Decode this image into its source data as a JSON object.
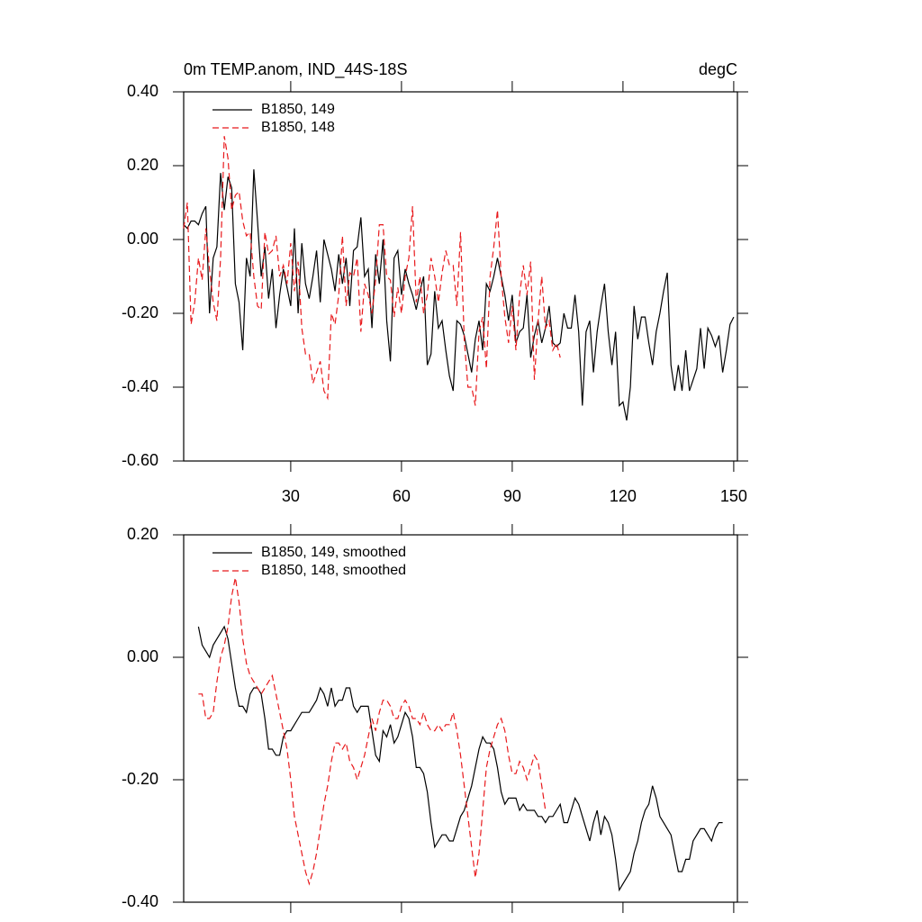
{
  "chart_data": [
    {
      "type": "line",
      "title": "0m TEMP.anom, IND_44S-18S",
      "right_title": "degC",
      "legend": "upper left",
      "x": [
        1,
        2,
        3,
        4,
        5,
        6,
        7,
        8,
        9,
        10,
        11,
        12,
        13,
        14,
        15,
        16,
        17,
        18,
        19,
        20,
        21,
        22,
        23,
        24,
        25,
        26,
        27,
        28,
        29,
        30,
        31,
        32,
        33,
        34,
        35,
        36,
        37,
        38,
        39,
        40,
        41,
        42,
        43,
        44,
        45,
        46,
        47,
        48,
        49,
        50,
        51,
        52,
        53,
        54,
        55,
        56,
        57,
        58,
        59,
        60,
        61,
        62,
        63,
        64,
        65,
        66,
        67,
        68,
        69,
        70,
        71,
        72,
        73,
        74,
        75,
        76,
        77,
        78,
        79,
        80,
        81,
        82,
        83,
        84,
        85,
        86,
        87,
        88,
        89,
        90,
        91,
        92,
        93,
        94,
        95,
        96,
        97,
        98,
        99,
        100,
        101,
        102,
        103,
        104,
        105,
        106,
        107,
        108,
        109,
        110,
        111,
        112,
        113,
        114,
        115,
        116,
        117,
        118,
        119,
        120,
        121,
        122,
        123,
        124,
        125,
        126,
        127,
        128,
        129,
        130,
        131,
        132,
        133,
        134,
        135,
        136,
        137,
        138,
        139,
        140,
        141,
        142,
        143,
        144,
        145,
        146,
        147,
        148,
        149,
        150
      ],
      "xlim": [
        1,
        151
      ],
      "xticks": [
        30,
        60,
        90,
        120,
        150
      ],
      "ylim": [
        -0.6,
        0.4
      ],
      "yticks": [
        {
          "value": 0.4,
          "label": "0.40"
        },
        {
          "value": 0.2,
          "label": "0.20"
        },
        {
          "value": 0,
          "label": "0.00"
        },
        {
          "value": -0.2,
          "label": "-0.20"
        },
        {
          "value": -0.4,
          "label": "-0.40"
        },
        {
          "value": -0.6,
          "label": "-0.60"
        }
      ],
      "series": [
        {
          "name": "B1850, 149",
          "color": "#000000",
          "dash": false,
          "values": [
            0.04,
            0.03,
            0.05,
            0.05,
            0.04,
            0.07,
            0.09,
            -0.2,
            -0.05,
            -0.02,
            0.18,
            0.08,
            0.17,
            0.14,
            -0.12,
            -0.17,
            -0.3,
            -0.05,
            -0.1,
            0.19,
            0.05,
            -0.1,
            -0.02,
            -0.16,
            -0.08,
            -0.24,
            -0.15,
            -0.08,
            -0.13,
            -0.18,
            0.03,
            -0.2,
            -0.01,
            -0.12,
            -0.16,
            -0.1,
            -0.03,
            -0.17,
            0.0,
            -0.04,
            -0.08,
            -0.14,
            -0.04,
            -0.12,
            -0.05,
            -0.18,
            -0.03,
            -0.02,
            0.06,
            -0.1,
            -0.08,
            -0.24,
            -0.04,
            -0.12,
            0.0,
            -0.22,
            -0.33,
            -0.05,
            -0.03,
            -0.15,
            -0.08,
            -0.12,
            -0.15,
            -0.19,
            -0.14,
            -0.1,
            -0.34,
            -0.31,
            -0.14,
            -0.24,
            -0.22,
            -0.3,
            -0.37,
            -0.41,
            -0.22,
            -0.23,
            -0.26,
            -0.31,
            -0.36,
            -0.27,
            -0.22,
            -0.3,
            -0.12,
            -0.14,
            -0.1,
            -0.05,
            -0.1,
            -0.15,
            -0.22,
            -0.15,
            -0.28,
            -0.25,
            -0.24,
            -0.15,
            -0.32,
            -0.26,
            -0.22,
            -0.28,
            -0.24,
            -0.18,
            -0.28,
            -0.29,
            -0.28,
            -0.2,
            -0.24,
            -0.24,
            -0.15,
            -0.25,
            -0.45,
            -0.25,
            -0.22,
            -0.36,
            -0.25,
            -0.18,
            -0.12,
            -0.25,
            -0.34,
            -0.25,
            -0.45,
            -0.44,
            -0.49,
            -0.4,
            -0.18,
            -0.27,
            -0.21,
            -0.21,
            -0.28,
            -0.34,
            -0.25,
            -0.2,
            -0.14,
            -0.09,
            -0.34,
            -0.41,
            -0.34,
            -0.41,
            -0.3,
            -0.41,
            -0.38,
            -0.35,
            -0.24,
            -0.35,
            -0.24,
            -0.26,
            -0.29,
            -0.26,
            -0.36,
            -0.3,
            -0.23,
            -0.21
          ]
        },
        {
          "name": "B1850, 148",
          "color": "#e8191c",
          "dash": true,
          "values": [
            0.03,
            0.1,
            -0.23,
            -0.17,
            -0.05,
            -0.11,
            0.03,
            -0.08,
            -0.17,
            -0.22,
            -0.05,
            0.28,
            0.22,
            0.08,
            0.12,
            0.13,
            0.05,
            0.01,
            0.02,
            -0.1,
            -0.18,
            -0.19,
            0.02,
            -0.04,
            -0.03,
            0.01,
            -0.1,
            -0.07,
            -0.12,
            -0.01,
            -0.14,
            -0.06,
            -0.24,
            -0.31,
            -0.31,
            -0.39,
            -0.36,
            -0.33,
            -0.41,
            -0.43,
            -0.2,
            -0.23,
            -0.15,
            0.01,
            -0.18,
            -0.09,
            -0.1,
            -0.05,
            -0.25,
            -0.12,
            -0.15,
            -0.2,
            -0.11,
            0.04,
            0.04,
            -0.1,
            -0.11,
            -0.21,
            -0.13,
            -0.2,
            -0.1,
            -0.05,
            0.09,
            -0.17,
            -0.1,
            -0.2,
            -0.15,
            -0.05,
            -0.1,
            -0.17,
            -0.09,
            -0.03,
            -0.07,
            -0.07,
            -0.18,
            0.02,
            -0.27,
            -0.4,
            -0.4,
            -0.45,
            -0.25,
            -0.21,
            -0.35,
            -0.1,
            -0.02,
            0.08,
            -0.1,
            -0.21,
            -0.28,
            -0.18,
            -0.3,
            -0.15,
            -0.07,
            -0.15,
            -0.06,
            -0.38,
            -0.22,
            -0.1,
            -0.24,
            -0.22,
            -0.3,
            -0.28,
            -0.32,
            null,
            null,
            null,
            null,
            null,
            null,
            null,
            null,
            null,
            null,
            null,
            null,
            null,
            null,
            null,
            null,
            null,
            null,
            null,
            null,
            null,
            null,
            null,
            null,
            null,
            null,
            null,
            null,
            null,
            null,
            null,
            null,
            null,
            null,
            null,
            null,
            null,
            null,
            null,
            null,
            null,
            null,
            null,
            null,
            null,
            null,
            null
          ]
        }
      ]
    },
    {
      "type": "line",
      "legend": "upper left",
      "x": [
        1,
        2,
        3,
        4,
        5,
        6,
        7,
        8,
        9,
        10,
        11,
        12,
        13,
        14,
        15,
        16,
        17,
        18,
        19,
        20,
        21,
        22,
        23,
        24,
        25,
        26,
        27,
        28,
        29,
        30,
        31,
        32,
        33,
        34,
        35,
        36,
        37,
        38,
        39,
        40,
        41,
        42,
        43,
        44,
        45,
        46,
        47,
        48,
        49,
        50,
        51,
        52,
        53,
        54,
        55,
        56,
        57,
        58,
        59,
        60,
        61,
        62,
        63,
        64,
        65,
        66,
        67,
        68,
        69,
        70,
        71,
        72,
        73,
        74,
        75,
        76,
        77,
        78,
        79,
        80,
        81,
        82,
        83,
        84,
        85,
        86,
        87,
        88,
        89,
        90,
        91,
        92,
        93,
        94,
        95,
        96,
        97,
        98,
        99,
        100,
        101,
        102,
        103,
        104,
        105,
        106,
        107,
        108,
        109,
        110,
        111,
        112,
        113,
        114,
        115,
        116,
        117,
        118,
        119,
        120,
        121,
        122,
        123,
        124,
        125,
        126,
        127,
        128,
        129,
        130,
        131,
        132,
        133,
        134,
        135,
        136,
        137,
        138,
        139,
        140,
        141,
        142,
        143,
        144,
        145,
        146,
        147,
        148,
        149,
        150
      ],
      "xlim": [
        1,
        151
      ],
      "xticks": [
        30,
        60,
        90,
        120,
        150
      ],
      "ylim": [
        -0.4,
        0.2
      ],
      "yticks": [
        {
          "value": 0.2,
          "label": "0.20"
        },
        {
          "value": 0,
          "label": "0.00"
        },
        {
          "value": -0.2,
          "label": "-0.20"
        },
        {
          "value": -0.4,
          "label": "-0.40"
        }
      ],
      "series": [
        {
          "name": "B1850, 149, smoothed",
          "color": "#000000",
          "dash": false,
          "values": [
            null,
            null,
            null,
            null,
            0.05,
            0.02,
            0.01,
            0.0,
            0.02,
            0.03,
            0.04,
            0.05,
            0.03,
            -0.01,
            -0.05,
            -0.08,
            -0.08,
            -0.09,
            -0.06,
            -0.05,
            -0.05,
            -0.06,
            -0.1,
            -0.15,
            -0.15,
            -0.16,
            -0.16,
            -0.13,
            -0.12,
            -0.12,
            -0.11,
            -0.1,
            -0.09,
            -0.09,
            -0.09,
            -0.08,
            -0.07,
            -0.05,
            -0.06,
            -0.08,
            -0.05,
            -0.08,
            -0.07,
            -0.07,
            -0.05,
            -0.05,
            -0.08,
            -0.09,
            -0.08,
            -0.08,
            -0.08,
            -0.12,
            -0.16,
            -0.17,
            -0.12,
            -0.13,
            -0.11,
            -0.14,
            -0.13,
            -0.11,
            -0.09,
            -0.1,
            -0.13,
            -0.18,
            -0.18,
            -0.19,
            -0.22,
            -0.27,
            -0.31,
            -0.3,
            -0.29,
            -0.29,
            -0.3,
            -0.3,
            -0.28,
            -0.26,
            -0.25,
            -0.23,
            -0.21,
            -0.18,
            -0.15,
            -0.13,
            -0.14,
            -0.14,
            -0.15,
            -0.18,
            -0.22,
            -0.24,
            -0.23,
            -0.23,
            -0.23,
            -0.25,
            -0.24,
            -0.25,
            -0.25,
            -0.25,
            -0.26,
            -0.26,
            -0.27,
            -0.26,
            -0.26,
            -0.25,
            -0.24,
            -0.27,
            -0.27,
            -0.25,
            -0.23,
            -0.24,
            -0.26,
            -0.28,
            -0.3,
            -0.27,
            -0.25,
            -0.29,
            -0.26,
            -0.27,
            -0.29,
            -0.33,
            -0.38,
            -0.37,
            -0.36,
            -0.35,
            -0.32,
            -0.3,
            -0.27,
            -0.25,
            -0.24,
            -0.21,
            -0.23,
            -0.26,
            -0.27,
            -0.28,
            -0.29,
            -0.32,
            -0.35,
            -0.35,
            -0.33,
            -0.33,
            -0.3,
            -0.29,
            -0.28,
            -0.28,
            -0.29,
            -0.3,
            -0.28,
            -0.27,
            -0.27,
            null,
            null,
            null
          ]
        },
        {
          "name": "B1850, 148, smoothed",
          "color": "#e8191c",
          "dash": true,
          "values": [
            null,
            null,
            null,
            null,
            -0.06,
            -0.06,
            -0.1,
            -0.1,
            -0.09,
            -0.04,
            0.0,
            0.02,
            0.05,
            0.1,
            0.13,
            0.09,
            0.03,
            -0.01,
            -0.03,
            -0.04,
            -0.05,
            -0.06,
            -0.05,
            -0.04,
            -0.03,
            -0.06,
            -0.09,
            -0.12,
            -0.15,
            -0.2,
            -0.26,
            -0.29,
            -0.32,
            -0.35,
            -0.37,
            -0.35,
            -0.32,
            -0.28,
            -0.24,
            -0.21,
            -0.17,
            -0.14,
            -0.14,
            -0.15,
            -0.14,
            -0.17,
            -0.18,
            -0.2,
            -0.18,
            -0.16,
            -0.13,
            -0.1,
            -0.12,
            -0.09,
            -0.07,
            -0.07,
            -0.08,
            -0.1,
            -0.1,
            -0.08,
            -0.07,
            -0.08,
            -0.1,
            -0.1,
            -0.11,
            -0.09,
            -0.11,
            -0.12,
            -0.12,
            -0.11,
            -0.12,
            -0.11,
            -0.11,
            -0.09,
            -0.12,
            -0.16,
            -0.21,
            -0.26,
            -0.31,
            -0.36,
            -0.32,
            -0.25,
            -0.18,
            -0.15,
            -0.13,
            -0.11,
            -0.1,
            -0.12,
            -0.16,
            -0.19,
            -0.19,
            -0.17,
            -0.18,
            -0.2,
            -0.18,
            -0.16,
            -0.17,
            -0.21,
            -0.25,
            null,
            null,
            null,
            null,
            null,
            null,
            null,
            null,
            null,
            null,
            null,
            null,
            null,
            null,
            null,
            null,
            null,
            null,
            null,
            null,
            null,
            null,
            null,
            null,
            null,
            null,
            null,
            null,
            null,
            null,
            null,
            null,
            null,
            null,
            null,
            null,
            null,
            null,
            null,
            null,
            null,
            null,
            null,
            null,
            null,
            null,
            null,
            null,
            null,
            null,
            null
          ]
        }
      ]
    }
  ]
}
